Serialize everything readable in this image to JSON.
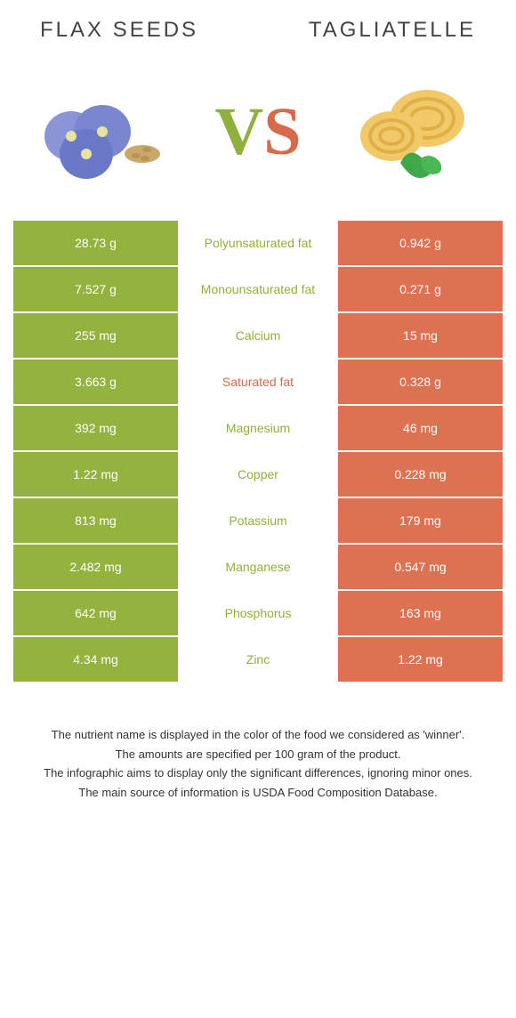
{
  "left_title": "FLAX SEEDS",
  "right_title": "TAGLIATELLE",
  "vs": {
    "v": "V",
    "s": "S"
  },
  "colors": {
    "left": "#94b23e",
    "right": "#dd7252",
    "left_text": "#8fb03a",
    "right_text": "#d66a4a"
  },
  "rows": [
    {
      "left": "28.73 g",
      "label": "Polyunsaturated fat",
      "right": "0.942 g",
      "winner": "left"
    },
    {
      "left": "7.527 g",
      "label": "Monounsaturated fat",
      "right": "0.271 g",
      "winner": "left"
    },
    {
      "left": "255 mg",
      "label": "Calcium",
      "right": "15 mg",
      "winner": "left"
    },
    {
      "left": "3.663 g",
      "label": "Saturated fat",
      "right": "0.328 g",
      "winner": "right"
    },
    {
      "left": "392 mg",
      "label": "Magnesium",
      "right": "46 mg",
      "winner": "left"
    },
    {
      "left": "1.22 mg",
      "label": "Copper",
      "right": "0.228 mg",
      "winner": "left"
    },
    {
      "left": "813 mg",
      "label": "Potassium",
      "right": "179 mg",
      "winner": "left"
    },
    {
      "left": "2.482 mg",
      "label": "Manganese",
      "right": "0.547 mg",
      "winner": "left"
    },
    {
      "left": "642 mg",
      "label": "Phosphorus",
      "right": "163 mg",
      "winner": "left"
    },
    {
      "left": "4.34 mg",
      "label": "Zinc",
      "right": "1.22 mg",
      "winner": "left"
    }
  ],
  "notes": [
    "The nutrient name is displayed in the color of the food we considered as 'winner'.",
    "The amounts are specified per 100 gram of the product.",
    "The infographic aims to display only the significant differences, ignoring minor ones.",
    "The main source of information is USDA Food Composition Database."
  ]
}
